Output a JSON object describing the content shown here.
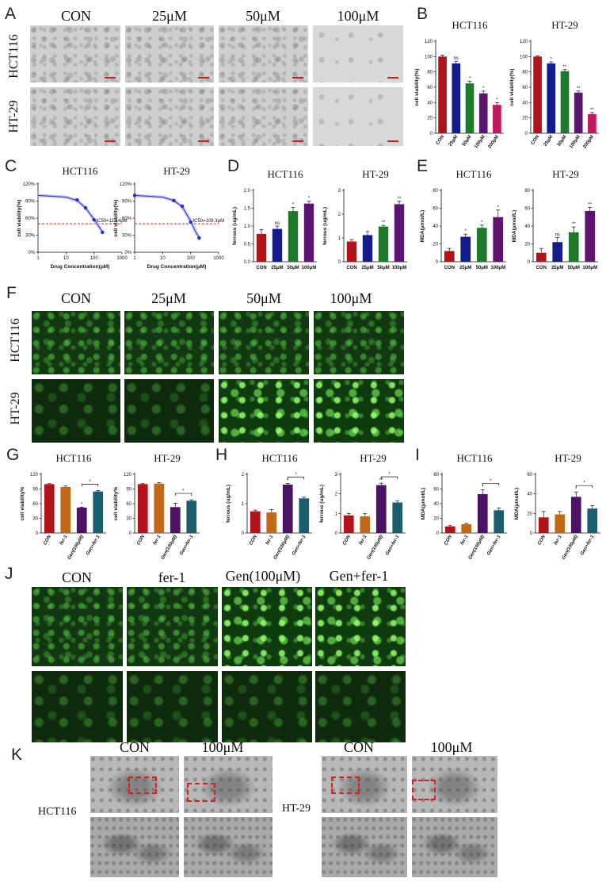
{
  "panels": {
    "A": {
      "label": "A",
      "columns": [
        "CON",
        "25μM",
        "50μM",
        "100μM"
      ],
      "rows": [
        "HCT116",
        "HT-29"
      ]
    },
    "B": {
      "label": "B"
    },
    "C": {
      "label": "C"
    },
    "D": {
      "label": "D"
    },
    "E": {
      "label": "E"
    },
    "F": {
      "label": "F",
      "columns": [
        "CON",
        "25μM",
        "50μM",
        "100μM"
      ],
      "rows": [
        "HCT116",
        "HT-29"
      ]
    },
    "G": {
      "label": "G"
    },
    "H": {
      "label": "H"
    },
    "I": {
      "label": "I"
    },
    "J": {
      "label": "J",
      "columns": [
        "CON",
        "fer-1",
        "Gen(100μM)",
        "Gen+fer-1"
      ]
    },
    "K": {
      "label": "K",
      "left_row": "HCT116",
      "right_row": "HT-29",
      "columns": [
        "CON",
        "100μM"
      ]
    }
  },
  "chart_data": [
    {
      "id": "B-HCT116",
      "type": "bar",
      "title": "HCT116",
      "ylabel": "cell viability(%)",
      "ylim": [
        0,
        120
      ],
      "yticks": [
        0,
        20,
        40,
        60,
        80,
        100,
        120
      ],
      "categories": [
        "CON",
        "25μM",
        "50μM",
        "100μM",
        "200μM"
      ],
      "values": [
        100,
        91,
        65,
        52,
        37
      ],
      "errors": [
        2,
        3,
        3,
        3,
        3
      ],
      "significance": [
        "",
        "ns",
        "*",
        "*",
        "*"
      ],
      "colors": [
        "#b0141a",
        "#141c8c",
        "#1d7a2a",
        "#5c1470",
        "#c01a5c"
      ]
    },
    {
      "id": "B-HT29",
      "type": "bar",
      "title": "HT-29",
      "ylabel": "cell viability(%)",
      "ylim": [
        0,
        120
      ],
      "yticks": [
        0,
        20,
        40,
        60,
        80,
        100,
        120
      ],
      "categories": [
        "CON",
        "25μM",
        "50μM",
        "100μM",
        "200μM"
      ],
      "values": [
        100,
        91,
        81,
        53,
        25
      ],
      "errors": [
        1,
        2,
        2,
        2,
        2
      ],
      "significance": [
        "",
        "*",
        "**",
        "**",
        "**"
      ],
      "colors": [
        "#b0141a",
        "#141c8c",
        "#1d7a2a",
        "#5c1470",
        "#c01a5c"
      ]
    },
    {
      "id": "C-HCT116",
      "type": "line",
      "title": "HCT116",
      "ylabel": "cell viability(%)",
      "xlabel": "Drug Concentration(μM)",
      "xscale": "log",
      "xlim": [
        1,
        1000
      ],
      "xticks": [
        1,
        10,
        100,
        1000
      ],
      "ylim": [
        0,
        120
      ],
      "yticks": [
        0,
        30,
        60,
        90,
        120
      ],
      "yticklabels": [
        "0%",
        "30%",
        "60%",
        "90%",
        "120%"
      ],
      "x": [
        25,
        50,
        100,
        200
      ],
      "y": [
        92,
        78,
        57,
        35
      ],
      "fit_x": [
        1,
        10,
        25,
        50,
        100,
        150,
        200
      ],
      "fit_y": [
        100,
        97,
        91,
        78,
        58,
        45,
        36
      ],
      "threshold": 50,
      "annotation": "IC50=113.4μM"
    },
    {
      "id": "C-HT29",
      "type": "line",
      "title": "HT-29",
      "ylabel": "cell viability(%)",
      "xlabel": "Drug Concentration(μM)",
      "xscale": "log",
      "xlim": [
        1,
        1000
      ],
      "xticks": [
        1,
        10,
        100,
        1000
      ],
      "ylim": [
        0,
        120
      ],
      "yticks": [
        0,
        30,
        60,
        90,
        120
      ],
      "yticklabels": [
        "0%",
        "30%",
        "60%",
        "90%",
        "120%"
      ],
      "x": [
        1,
        25,
        50,
        100,
        200
      ],
      "y": [
        100,
        91,
        81,
        53,
        25
      ],
      "fit_x": [
        1,
        10,
        25,
        50,
        100,
        150,
        200
      ],
      "fit_y": [
        100,
        97,
        91,
        80,
        55,
        36,
        26
      ],
      "threshold": 50,
      "annotation": "IC50=109.3μM"
    },
    {
      "id": "D-HCT116",
      "type": "bar",
      "title": "HCT116",
      "ylabel": "ferrous (ug/mL)",
      "ylim": [
        0,
        2.0
      ],
      "yticks": [
        0,
        0.5,
        1.0,
        1.5,
        2.0
      ],
      "yticklabels": [
        "0.0",
        "0.5",
        "1.0",
        "1.5",
        "2.0"
      ],
      "categories": [
        "CON",
        "25μM",
        "50μM",
        "100μM"
      ],
      "values": [
        0.78,
        0.92,
        1.42,
        1.63
      ],
      "errors": [
        0.12,
        0.08,
        0.1,
        0.07
      ],
      "significance": [
        "",
        "ns",
        "*",
        "*"
      ],
      "colors": [
        "#b0141a",
        "#141c8c",
        "#1d7a2a",
        "#5c1470"
      ]
    },
    {
      "id": "D-HT29",
      "type": "bar",
      "title": "HT-29",
      "ylabel": "ferrous (ug/mL)",
      "ylim": [
        0,
        3
      ],
      "yticks": [
        0,
        1,
        2,
        3
      ],
      "categories": [
        "CON",
        "25μM",
        "50μM",
        "100μM"
      ],
      "values": [
        0.85,
        1.12,
        1.48,
        2.42
      ],
      "errors": [
        0.08,
        0.15,
        0.05,
        0.12
      ],
      "significance": [
        "",
        "",
        "**",
        "**"
      ],
      "colors": [
        "#b0141a",
        "#141c8c",
        "#1d7a2a",
        "#5c1470"
      ]
    },
    {
      "id": "E-HCT116",
      "type": "bar",
      "title": "HCT116",
      "ylabel": "MDA(μmol/L)",
      "ylim": [
        0,
        80
      ],
      "yticks": [
        0,
        20,
        40,
        60,
        80
      ],
      "categories": [
        "CON",
        "25μM",
        "50μM",
        "100μM"
      ],
      "values": [
        12,
        28,
        38,
        50
      ],
      "errors": [
        3,
        3,
        3,
        8
      ],
      "significance": [
        "",
        "*",
        "*",
        "*"
      ],
      "colors": [
        "#b0141a",
        "#141c8c",
        "#1d7a2a",
        "#5c1470"
      ]
    },
    {
      "id": "E-HT29",
      "type": "bar",
      "title": "HT-29",
      "ylabel": "MDA(μmol/L)",
      "ylim": [
        0,
        80
      ],
      "yticks": [
        0,
        20,
        40,
        60,
        80
      ],
      "categories": [
        "CON",
        "25μM",
        "50μM",
        "100μM"
      ],
      "values": [
        10,
        22,
        33,
        57
      ],
      "errors": [
        5,
        5,
        6,
        4
      ],
      "significance": [
        "",
        "ns",
        "**",
        "**"
      ],
      "colors": [
        "#b0141a",
        "#141c8c",
        "#1d7a2a",
        "#5c1470"
      ]
    },
    {
      "id": "G-HCT116",
      "type": "bar",
      "title": "HCT116",
      "ylabel": "cell viability%",
      "ylim": [
        0,
        120
      ],
      "yticks": [
        0,
        30,
        60,
        90,
        120
      ],
      "categories": [
        "CON",
        "fer-1",
        "Gen(100μM)",
        "Gen+fer-1"
      ],
      "values": [
        100,
        94,
        52,
        85
      ],
      "errors": [
        1,
        2,
        1,
        2
      ],
      "significance": [
        "",
        "",
        "*",
        ""
      ],
      "bracket": {
        "from": 2,
        "to": 3,
        "label": "*"
      },
      "colors": [
        "#b0141a",
        "#c06a18",
        "#4c1266",
        "#1a5e6e"
      ]
    },
    {
      "id": "G-HT29",
      "type": "bar",
      "title": "HT-29",
      "ylabel": "cell viability%",
      "ylim": [
        0,
        120
      ],
      "yticks": [
        0,
        30,
        60,
        90,
        120
      ],
      "categories": [
        "CON",
        "fer-1",
        "Gen(100μM)",
        "Gen+fer-1"
      ],
      "values": [
        100,
        101,
        53,
        66
      ],
      "errors": [
        1,
        2,
        8,
        2
      ],
      "significance": [
        "",
        "",
        "",
        ""
      ],
      "bracket": {
        "from": 2,
        "to": 3,
        "label": "*"
      },
      "colors": [
        "#b0141a",
        "#c06a18",
        "#4c1266",
        "#1a5e6e"
      ]
    },
    {
      "id": "H-HCT116",
      "type": "bar",
      "title": "HCT116",
      "ylabel": "ferrous (ug/mL)",
      "ylim": [
        0,
        2
      ],
      "yticks": [
        0,
        1,
        2
      ],
      "categories": [
        "CON",
        "fer-1",
        "Gen(100μM)",
        "Gen+fer-1"
      ],
      "values": [
        0.74,
        0.7,
        1.65,
        1.18
      ],
      "errors": [
        0.04,
        0.1,
        0.04,
        0.04
      ],
      "significance": [
        "",
        "",
        "*",
        ""
      ],
      "bracket": {
        "from": 2,
        "to": 3,
        "label": "*"
      },
      "colors": [
        "#b0141a",
        "#c06a18",
        "#4c1266",
        "#1a5e6e"
      ]
    },
    {
      "id": "H-HT29",
      "type": "bar",
      "title": "HT-29",
      "ylabel": "ferrous (ug/mL)",
      "ylim": [
        0,
        3
      ],
      "yticks": [
        0,
        1,
        2,
        3
      ],
      "categories": [
        "CON",
        "fer-1",
        "Gen(100μM)",
        "Gen+fer-1"
      ],
      "values": [
        0.9,
        0.85,
        2.45,
        1.56
      ],
      "errors": [
        0.1,
        0.14,
        0.1,
        0.08
      ],
      "significance": [
        "",
        "",
        "**",
        ""
      ],
      "bracket": {
        "from": 2,
        "to": 3,
        "label": "*"
      },
      "colors": [
        "#b0141a",
        "#c06a18",
        "#4c1266",
        "#1a5e6e"
      ]
    },
    {
      "id": "I-HCT116",
      "type": "bar",
      "title": "HCT116",
      "ylabel": "MDA(μmol/L)",
      "ylim": [
        0,
        80
      ],
      "yticks": [
        0,
        20,
        40,
        60,
        80
      ],
      "categories": [
        "CON",
        "fer-1",
        "Gen(100μM)",
        "Gen+fer-1"
      ],
      "values": [
        9,
        12,
        53,
        31
      ],
      "errors": [
        1,
        1,
        6,
        3
      ],
      "significance": [
        "",
        "",
        "*",
        ""
      ],
      "bracket": {
        "from": 2,
        "to": 3,
        "label": "*"
      },
      "colors": [
        "#b0141a",
        "#c06a18",
        "#4c1266",
        "#1a5e6e"
      ]
    },
    {
      "id": "I-HT29",
      "type": "bar",
      "title": "HT-29",
      "ylabel": "MDA(μmol/L)",
      "ylim": [
        0,
        60
      ],
      "yticks": [
        0,
        20,
        40,
        60
      ],
      "categories": [
        "CON",
        "fer-1",
        "Gen(100μM)",
        "Gen+fer-1"
      ],
      "values": [
        16,
        19,
        37,
        25
      ],
      "errors": [
        6,
        3,
        5,
        3
      ],
      "significance": [
        "",
        "",
        "*",
        ""
      ],
      "bracket": {
        "from": 2,
        "to": 3,
        "label": "*"
      },
      "colors": [
        "#b0141a",
        "#c06a18",
        "#4c1266",
        "#1a5e6e"
      ]
    }
  ]
}
